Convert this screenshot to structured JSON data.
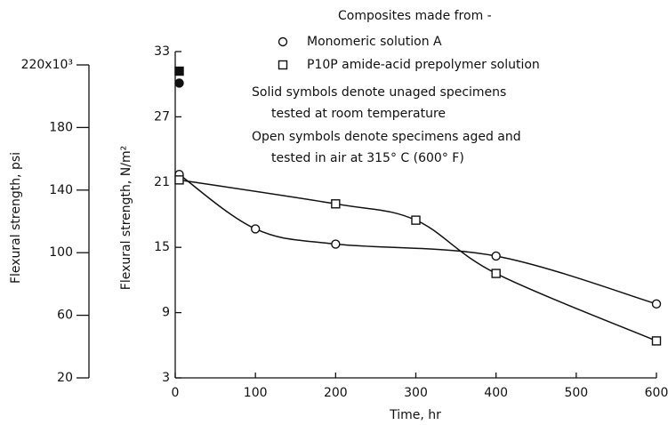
{
  "chart_data": {
    "type": "scatter",
    "xlabel": "Time, hr",
    "ylabel": "Flexural strength, N/m²",
    "y2label": "Flexural strength, psi",
    "legend_title": "Composites made from -",
    "annotations": [
      "Solid symbols denote unaged specimens",
      "tested at room temperature",
      "Open symbols denote specimens aged and",
      "tested in air at 315° C (600° F)"
    ],
    "xlim": [
      0,
      600
    ],
    "xticks": [
      0,
      100,
      200,
      300,
      400,
      500,
      600
    ],
    "ylim": [
      3,
      33
    ],
    "yticks": [
      3,
      9,
      15,
      21,
      27,
      33
    ],
    "y2lim": [
      20,
      220
    ],
    "y2ticks": [
      20,
      60,
      100,
      140,
      180,
      {
        "value": 220,
        "label": "220x10³"
      }
    ],
    "series": [
      {
        "name": "Monomeric solution A",
        "color": "#111111",
        "marker": "circle",
        "x": [
          5,
          100,
          200,
          400,
          600
        ],
        "values": [
          21.7,
          16.7,
          15.3,
          14.2,
          9.8
        ],
        "unaged_x": 5,
        "unaged_value": 30.1
      },
      {
        "name": "P10P amide-acid prepolymer solution",
        "color": "#111111",
        "marker": "square",
        "x": [
          5,
          200,
          300,
          400,
          600
        ],
        "values": [
          21.2,
          19.0,
          17.5,
          12.6,
          6.4
        ],
        "unaged_x": 5,
        "unaged_value": 31.2
      }
    ]
  }
}
